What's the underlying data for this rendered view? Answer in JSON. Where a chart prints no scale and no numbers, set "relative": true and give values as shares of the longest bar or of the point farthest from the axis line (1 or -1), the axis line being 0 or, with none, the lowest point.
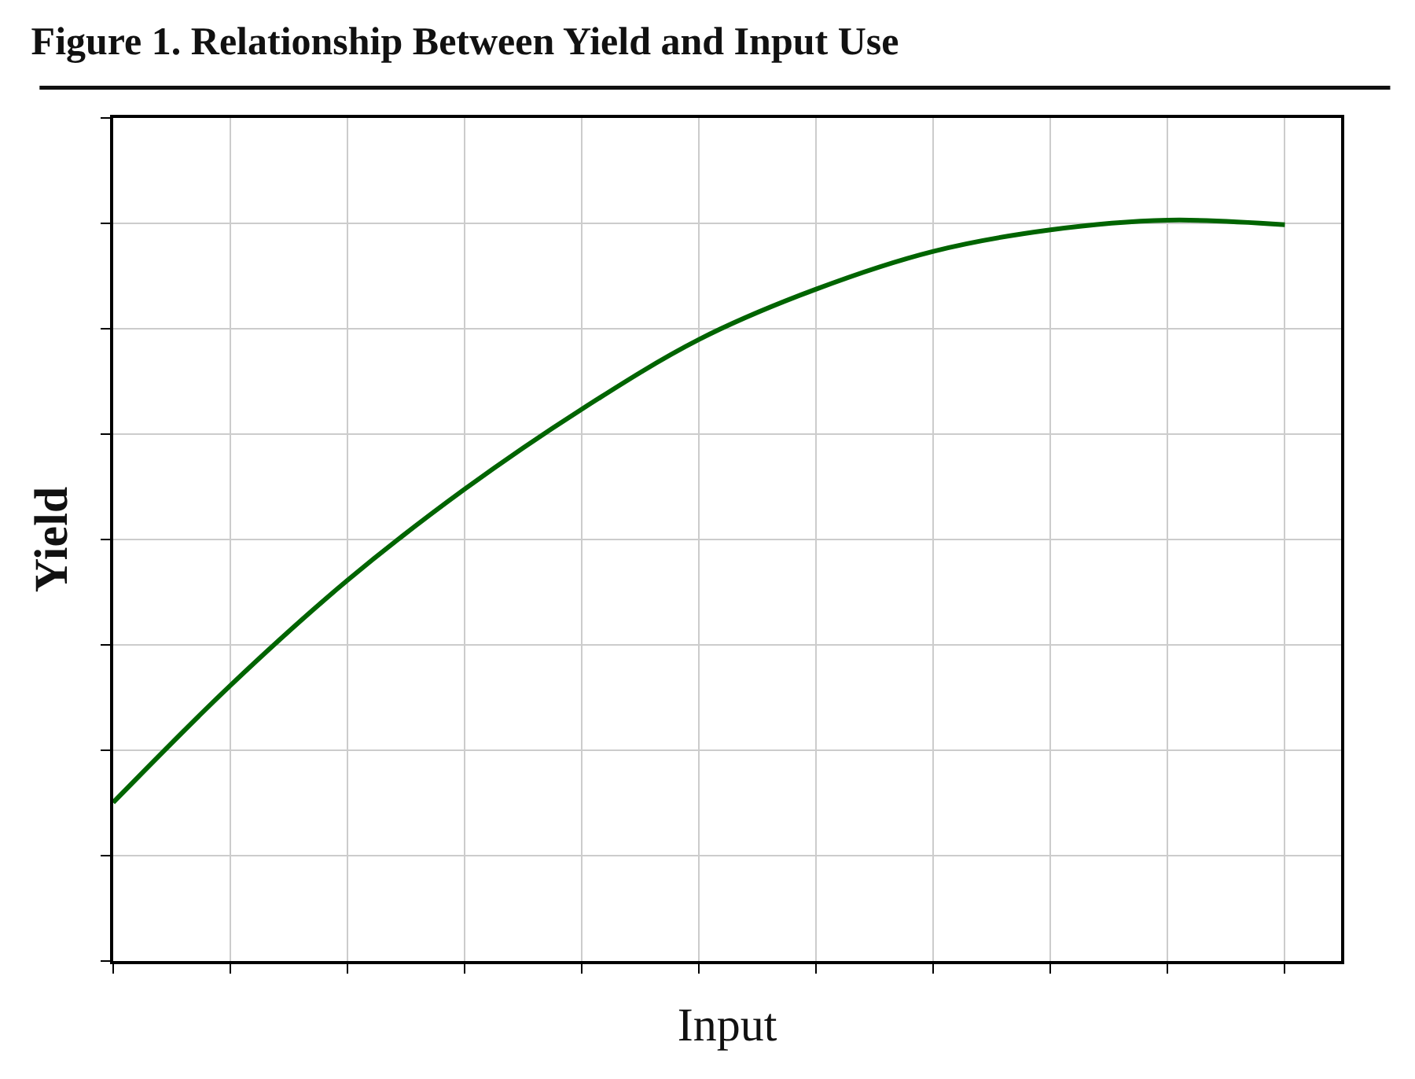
{
  "chart_data": {
    "type": "line",
    "title": "Figure 1. Relationship Between Yield and Input Use",
    "xlabel": "Input",
    "ylabel": "Yield",
    "relative": true,
    "grid": true,
    "categories": [
      null,
      null,
      null,
      null,
      null,
      null,
      null,
      null,
      null,
      null,
      null
    ],
    "series": [
      {
        "color": "#006400",
        "values": [
          0.214,
          0.372,
          0.514,
          0.637,
          0.745,
          0.839,
          0.907,
          0.958,
          0.987,
          1,
          0.994
        ]
      }
    ]
  }
}
